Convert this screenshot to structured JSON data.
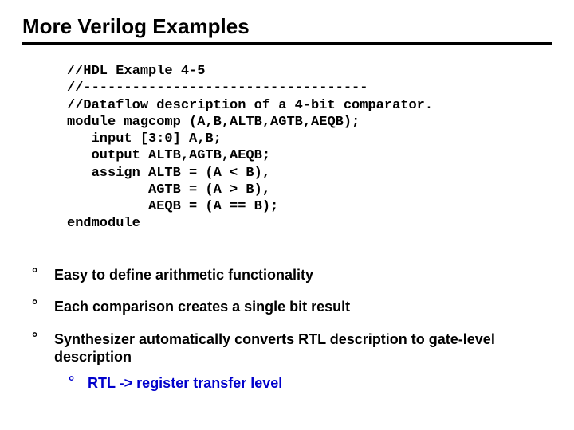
{
  "title": "More Verilog Examples",
  "code": "//HDL Example 4-5\n//-----------------------------------\n//Dataflow description of a 4-bit comparator.\nmodule magcomp (A,B,ALTB,AGTB,AEQB);\n   input [3:0] A,B;\n   output ALTB,AGTB,AEQB;\n   assign ALTB = (A < B),\n          AGTB = (A > B),\n          AEQB = (A == B);\nendmodule",
  "bullets": [
    {
      "text": "Easy to define arithmetic functionality"
    },
    {
      "text": "Each comparison creates a single bit result"
    },
    {
      "text": "Synthesizer automatically converts RTL description to gate-level description",
      "sub": [
        {
          "text": "RTL -> register transfer level"
        }
      ]
    }
  ],
  "colors": {
    "text": "#000000",
    "accent": "#0000cc",
    "background": "#ffffff",
    "rule": "#000000"
  },
  "fonts": {
    "title_size": 26,
    "body_size": 18,
    "code_size": 17,
    "code_family": "Courier New",
    "body_family": "Arial"
  }
}
